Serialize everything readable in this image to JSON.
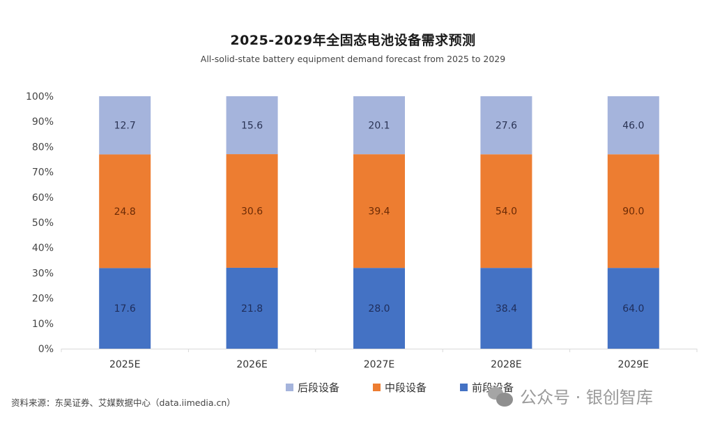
{
  "chart_data": {
    "type": "bar",
    "stacked": true,
    "percent_stacked": true,
    "title": "2025-2029年全固态电池设备需求预测",
    "subtitle": "All-solid-state battery equipment demand forecast from 2025 to 2029",
    "xlabel": "",
    "ylabel": "",
    "categories": [
      "2025E",
      "2026E",
      "2027E",
      "2028E",
      "2029E"
    ],
    "series": [
      {
        "name": "前段设备",
        "color": "#4472C4",
        "values": [
          17.6,
          21.8,
          28.0,
          38.4,
          64.0
        ],
        "share_percent": 31.9,
        "label_color": "#1f2d5a"
      },
      {
        "name": "中段设备",
        "color": "#ED7D31",
        "values": [
          24.8,
          30.6,
          39.4,
          54.0,
          90.0
        ],
        "share_percent": 45.0,
        "label_color": "#6b2a05"
      },
      {
        "name": "后段设备",
        "color": "#A5B4DC",
        "values": [
          12.7,
          15.6,
          20.1,
          27.6,
          46.0
        ],
        "share_percent": 23.1,
        "label_color": "#2a3354"
      }
    ],
    "ylim": [
      0,
      100
    ],
    "yticks": [
      "0%",
      "10%",
      "20%",
      "30%",
      "40%",
      "50%",
      "60%",
      "70%",
      "80%",
      "90%",
      "100%"
    ],
    "grid": false,
    "legend": {
      "placement": "bottom",
      "order": [
        "后段设备",
        "中段设备",
        "前段设备"
      ]
    }
  },
  "legend_items": [
    {
      "label": "后段设备",
      "color": "#A5B4DC"
    },
    {
      "label": "中段设备",
      "color": "#ED7D31"
    },
    {
      "label": "前段设备",
      "color": "#4472C4"
    }
  ],
  "source": "资料来源：东吴证券、艾媒数据中心（data.iimedia.cn）",
  "watermark": "公众号 · 银创智库"
}
